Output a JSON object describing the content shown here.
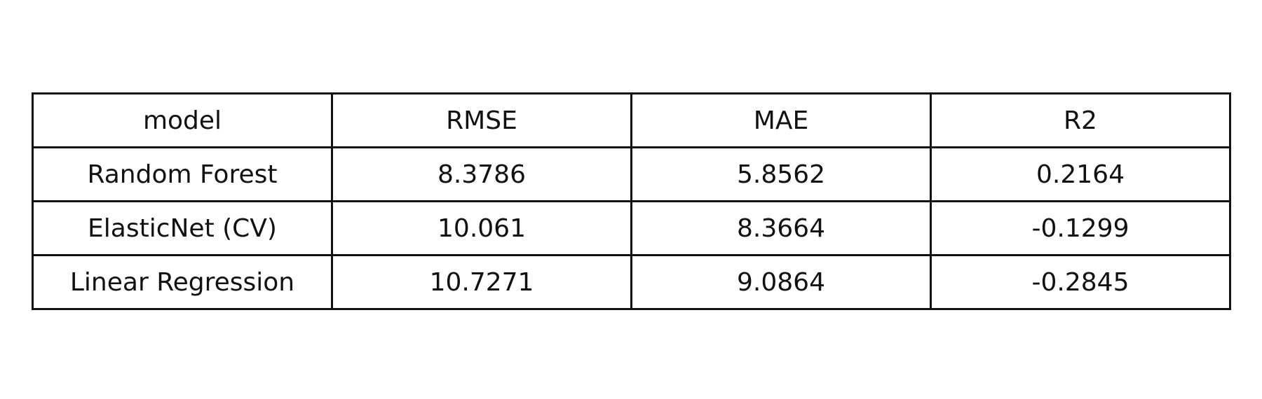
{
  "chart_data": {
    "type": "table",
    "columns": [
      "model",
      "RMSE",
      "MAE",
      "R2"
    ],
    "rows": [
      [
        "Random Forest",
        "8.3786",
        "5.8562",
        "0.2164"
      ],
      [
        "ElasticNet (CV)",
        "10.061",
        "8.3664",
        "-0.1299"
      ],
      [
        "Linear Regression",
        "10.7271",
        "9.0864",
        "-0.2845"
      ]
    ]
  }
}
